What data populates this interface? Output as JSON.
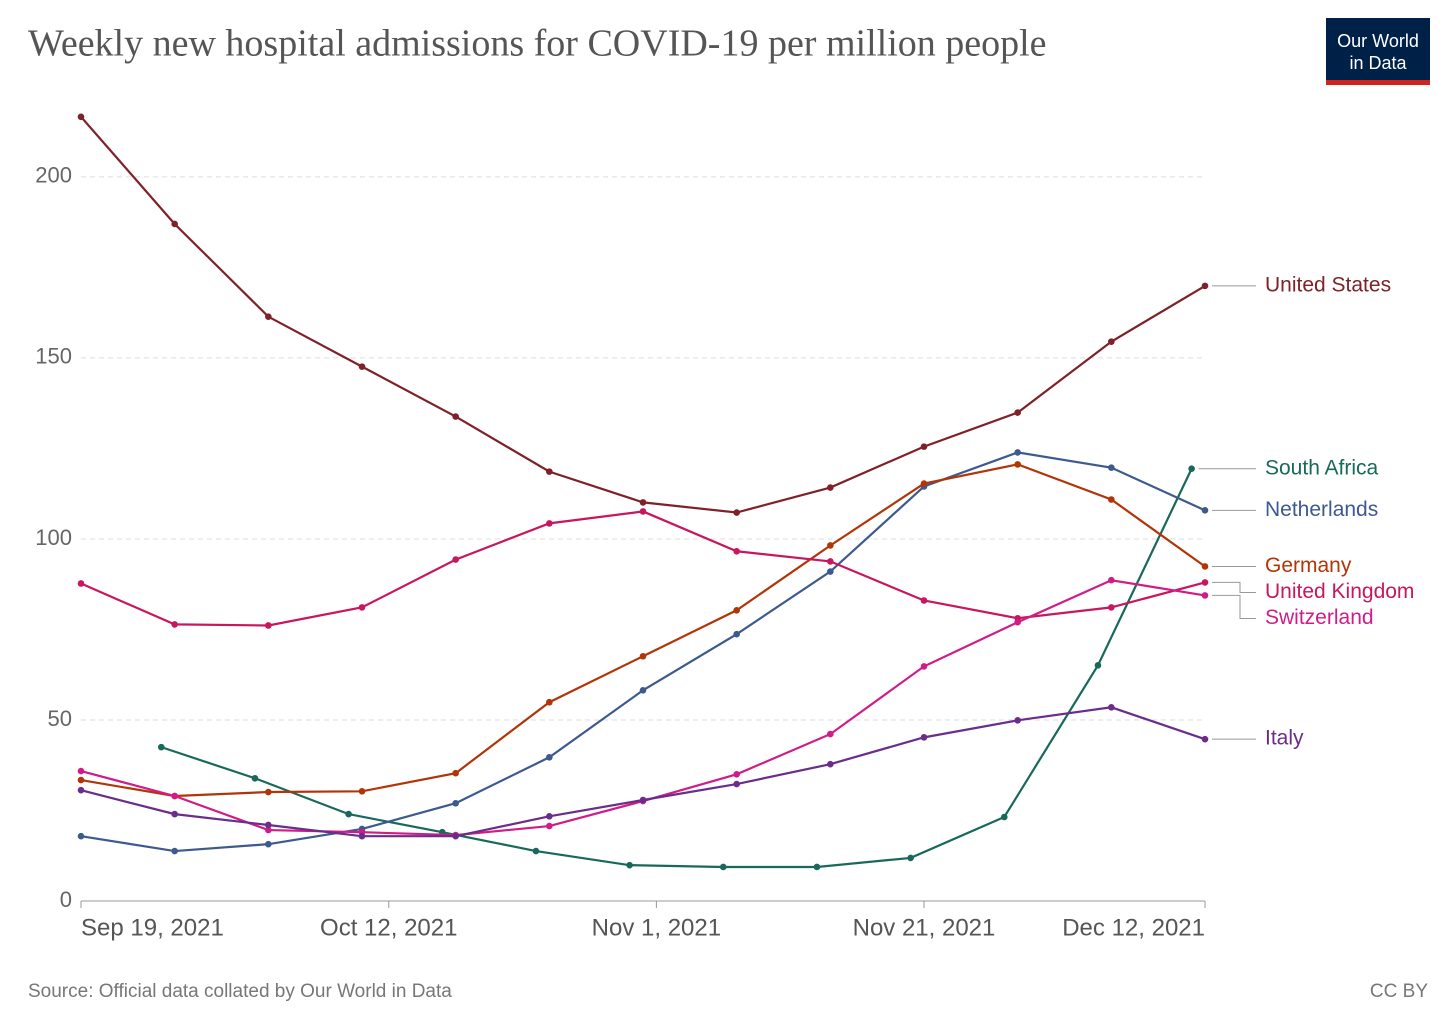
{
  "chart_data": {
    "type": "line",
    "title": "Weekly new hospital admissions for COVID-19 per million people",
    "logo": [
      "Our World",
      "in Data"
    ],
    "source": "Source: Official data collated by Our World in Data",
    "license": "CC BY",
    "x": [
      "2021-09-19",
      "2021-09-26",
      "2021-10-03",
      "2021-10-10",
      "2021-10-17",
      "2021-10-24",
      "2021-10-31",
      "2021-11-07",
      "2021-11-14",
      "2021-11-21",
      "2021-11-28",
      "2021-12-05",
      "2021-12-12"
    ],
    "xlim": [
      "2021-09-19",
      "2021-12-12"
    ],
    "xticks": [
      {
        "value": "2021-09-19",
        "label": "Sep 19, 2021"
      },
      {
        "value": "2021-10-12",
        "label": "Oct 12, 2021"
      },
      {
        "value": "2021-11-01",
        "label": "Nov 1, 2021"
      },
      {
        "value": "2021-11-21",
        "label": "Nov 21, 2021"
      },
      {
        "value": "2021-12-12",
        "label": "Dec 12, 2021"
      }
    ],
    "ylim": [
      0,
      220
    ],
    "yticks": [
      0,
      50,
      100,
      150,
      200
    ],
    "grid": true,
    "series": [
      {
        "name": "United States",
        "color": "#7f2128",
        "values": [
          216.6,
          187,
          161.4,
          147.6,
          133.8,
          118.6,
          110.1,
          107.3,
          114.2,
          125.5,
          134.9,
          154.5,
          169.9
        ]
      },
      {
        "name": "South Africa",
        "color": "#18695b",
        "x": [
          "2021-09-25",
          "2021-10-02",
          "2021-10-09",
          "2021-10-16",
          "2021-10-23",
          "2021-10-30",
          "2021-11-06",
          "2021-11-13",
          "2021-11-20",
          "2021-11-27",
          "2021-12-04",
          "2021-12-11"
        ],
        "values": [
          42.5,
          33.9,
          24,
          19,
          13.8,
          9.9,
          9.4,
          9.4,
          11.9,
          23.2,
          65.1,
          119.4
        ]
      },
      {
        "name": "Netherlands",
        "color": "#3d5a8e",
        "values": [
          17.9,
          13.8,
          15.7,
          19.9,
          27,
          39.7,
          58.2,
          73.7,
          91,
          114.5,
          123.9,
          119.7,
          107.9
        ]
      },
      {
        "name": "Germany",
        "color": "#b13507",
        "values": [
          33.4,
          29,
          30.1,
          30.3,
          35.3,
          54.9,
          67.6,
          80.3,
          98.2,
          115.3,
          120.6,
          110.9,
          92.4
        ]
      },
      {
        "name": "United Kingdom",
        "color": "#c8165f",
        "values": [
          87.7,
          76.4,
          76.1,
          81.1,
          94.3,
          104.3,
          107.6,
          96.6,
          93.8,
          83,
          78.1,
          81.1,
          88
        ]
      },
      {
        "name": "Switzerland",
        "color": "#d11c87",
        "values": [
          35.9,
          29,
          19.6,
          19,
          18.2,
          20.7,
          27.6,
          35,
          46.1,
          64.8,
          77,
          88.6,
          84.4
        ]
      },
      {
        "name": "Italy",
        "color": "#6a2d8a",
        "values": [
          30.6,
          24,
          21,
          17.9,
          17.9,
          23.4,
          27.9,
          32.3,
          37.8,
          45.2,
          49.9,
          53.5,
          44.7
        ]
      }
    ]
  }
}
